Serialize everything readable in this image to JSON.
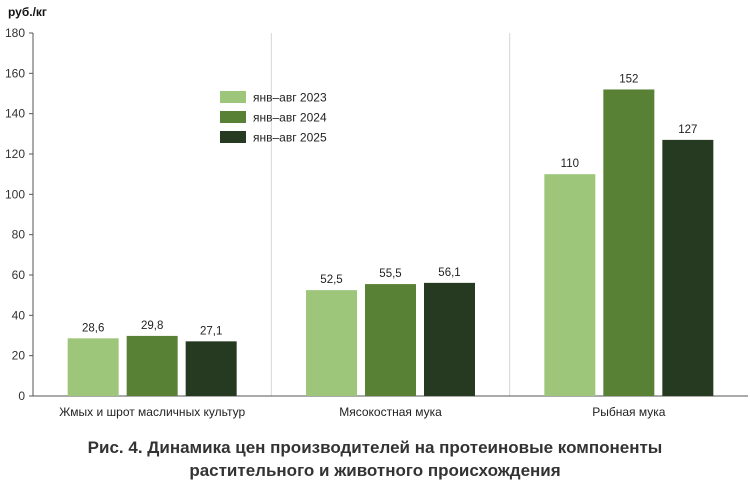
{
  "caption": {
    "line1": "Рис. 4. Динамика цен производителей на протеиновые компоненты",
    "line2": "растительного и животного происхождения"
  },
  "chart_data": {
    "type": "bar",
    "y_unit": "руб./кг",
    "categories": [
      "Жмых и шрот масличных культур",
      "Мясокостная мука",
      "Рыбная мука"
    ],
    "series": [
      {
        "name": "янв–авг 2023",
        "values": [
          28.6,
          52.5,
          110
        ],
        "labels": [
          "28,6",
          "52,5",
          "110"
        ],
        "color": "#9dc67a"
      },
      {
        "name": "янв–авг 2024",
        "values": [
          29.8,
          55.5,
          152
        ],
        "labels": [
          "29,8",
          "55,5",
          "152"
        ],
        "color": "#588135"
      },
      {
        "name": "янв–авг 2025",
        "values": [
          27.1,
          56.1,
          127
        ],
        "labels": [
          "27,1",
          "56,1",
          "127"
        ],
        "color": "#253a20"
      }
    ],
    "ylim": [
      0,
      180
    ],
    "yticks": [
      0,
      20,
      40,
      60,
      80,
      100,
      120,
      140,
      160,
      180
    ],
    "grid": "vertical separators between categories",
    "legend_position": "upper-left inside plot, over first separator"
  }
}
